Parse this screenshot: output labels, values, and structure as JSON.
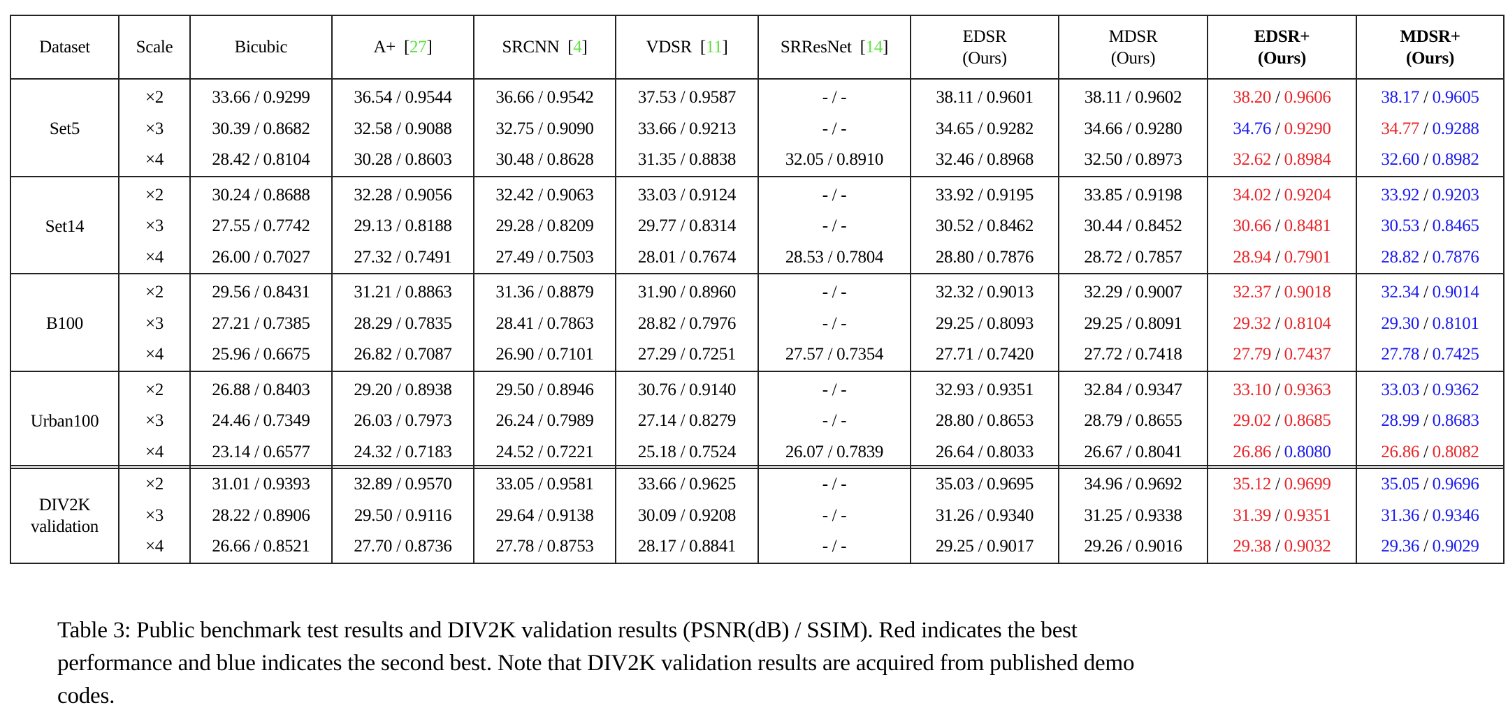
{
  "colors": {
    "citation": "#5fe040",
    "best": "#e8262a",
    "second_best": "#1a1aef",
    "border": "#222222"
  },
  "header": {
    "dataset": "Dataset",
    "scale": "Scale",
    "methods": [
      {
        "name": "Bicubic",
        "cite": "",
        "sub": "",
        "bold": false
      },
      {
        "name": "A+",
        "cite": "27",
        "sub": "",
        "bold": false
      },
      {
        "name": "SRCNN",
        "cite": "4",
        "sub": "",
        "bold": false
      },
      {
        "name": "VDSR",
        "cite": "11",
        "sub": "",
        "bold": false
      },
      {
        "name": "SRResNet",
        "cite": "14",
        "sub": "",
        "bold": false
      },
      {
        "name": "EDSR",
        "cite": "",
        "sub": "(Ours)",
        "bold": false
      },
      {
        "name": "MDSR",
        "cite": "",
        "sub": "(Ours)",
        "bold": false
      },
      {
        "name": "EDSR+",
        "cite": "",
        "sub": "(Ours)",
        "bold": true
      },
      {
        "name": "MDSR+",
        "cite": "",
        "sub": "(Ours)",
        "bold": true
      }
    ]
  },
  "groups": [
    {
      "dataset": "Set5",
      "rows": [
        {
          "scale": "×2",
          "cells": [
            {
              "psnr": "33.66",
              "ssim": "0.9299"
            },
            {
              "psnr": "36.54",
              "ssim": "0.9544"
            },
            {
              "psnr": "36.66",
              "ssim": "0.9542"
            },
            {
              "psnr": "37.53",
              "ssim": "0.9587"
            },
            {
              "psnr": "-",
              "ssim": "-"
            },
            {
              "psnr": "38.11",
              "ssim": "0.9601"
            },
            {
              "psnr": "38.11",
              "ssim": "0.9602"
            },
            {
              "psnr": "38.20",
              "ssim": "0.9606",
              "pc": "red",
              "sc": "red"
            },
            {
              "psnr": "38.17",
              "ssim": "0.9605",
              "pc": "blue",
              "sc": "blue"
            }
          ]
        },
        {
          "scale": "×3",
          "cells": [
            {
              "psnr": "30.39",
              "ssim": "0.8682"
            },
            {
              "psnr": "32.58",
              "ssim": "0.9088"
            },
            {
              "psnr": "32.75",
              "ssim": "0.9090"
            },
            {
              "psnr": "33.66",
              "ssim": "0.9213"
            },
            {
              "psnr": "-",
              "ssim": "-"
            },
            {
              "psnr": "34.65",
              "ssim": "0.9282"
            },
            {
              "psnr": "34.66",
              "ssim": "0.9280"
            },
            {
              "psnr": "34.76",
              "ssim": "0.9290",
              "pc": "blue",
              "sc": "red"
            },
            {
              "psnr": "34.77",
              "ssim": "0.9288",
              "pc": "red",
              "sc": "blue"
            }
          ]
        },
        {
          "scale": "×4",
          "cells": [
            {
              "psnr": "28.42",
              "ssim": "0.8104"
            },
            {
              "psnr": "30.28",
              "ssim": "0.8603"
            },
            {
              "psnr": "30.48",
              "ssim": "0.8628"
            },
            {
              "psnr": "31.35",
              "ssim": "0.8838"
            },
            {
              "psnr": "32.05",
              "ssim": "0.8910"
            },
            {
              "psnr": "32.46",
              "ssim": "0.8968"
            },
            {
              "psnr": "32.50",
              "ssim": "0.8973"
            },
            {
              "psnr": "32.62",
              "ssim": "0.8984",
              "pc": "red",
              "sc": "red"
            },
            {
              "psnr": "32.60",
              "ssim": "0.8982",
              "pc": "blue",
              "sc": "blue"
            }
          ]
        }
      ]
    },
    {
      "dataset": "Set14",
      "rows": [
        {
          "scale": "×2",
          "cells": [
            {
              "psnr": "30.24",
              "ssim": "0.8688"
            },
            {
              "psnr": "32.28",
              "ssim": "0.9056"
            },
            {
              "psnr": "32.42",
              "ssim": "0.9063"
            },
            {
              "psnr": "33.03",
              "ssim": "0.9124"
            },
            {
              "psnr": "-",
              "ssim": "-"
            },
            {
              "psnr": "33.92",
              "ssim": "0.9195"
            },
            {
              "psnr": "33.85",
              "ssim": "0.9198"
            },
            {
              "psnr": "34.02",
              "ssim": "0.9204",
              "pc": "red",
              "sc": "red"
            },
            {
              "psnr": "33.92",
              "ssim": "0.9203",
              "pc": "blue",
              "sc": "blue"
            }
          ]
        },
        {
          "scale": "×3",
          "cells": [
            {
              "psnr": "27.55",
              "ssim": "0.7742"
            },
            {
              "psnr": "29.13",
              "ssim": "0.8188"
            },
            {
              "psnr": "29.28",
              "ssim": "0.8209"
            },
            {
              "psnr": "29.77",
              "ssim": "0.8314"
            },
            {
              "psnr": "-",
              "ssim": "-"
            },
            {
              "psnr": "30.52",
              "ssim": "0.8462"
            },
            {
              "psnr": "30.44",
              "ssim": "0.8452"
            },
            {
              "psnr": "30.66",
              "ssim": "0.8481",
              "pc": "red",
              "sc": "red"
            },
            {
              "psnr": "30.53",
              "ssim": "0.8465",
              "pc": "blue",
              "sc": "blue"
            }
          ]
        },
        {
          "scale": "×4",
          "cells": [
            {
              "psnr": "26.00",
              "ssim": "0.7027"
            },
            {
              "psnr": "27.32",
              "ssim": "0.7491"
            },
            {
              "psnr": "27.49",
              "ssim": "0.7503"
            },
            {
              "psnr": "28.01",
              "ssim": "0.7674"
            },
            {
              "psnr": "28.53",
              "ssim": "0.7804"
            },
            {
              "psnr": "28.80",
              "ssim": "0.7876"
            },
            {
              "psnr": "28.72",
              "ssim": "0.7857"
            },
            {
              "psnr": "28.94",
              "ssim": "0.7901",
              "pc": "red",
              "sc": "red"
            },
            {
              "psnr": "28.82",
              "ssim": "0.7876",
              "pc": "blue",
              "sc": "blue"
            }
          ]
        }
      ]
    },
    {
      "dataset": "B100",
      "rows": [
        {
          "scale": "×2",
          "cells": [
            {
              "psnr": "29.56",
              "ssim": "0.8431"
            },
            {
              "psnr": "31.21",
              "ssim": "0.8863"
            },
            {
              "psnr": "31.36",
              "ssim": "0.8879"
            },
            {
              "psnr": "31.90",
              "ssim": "0.8960"
            },
            {
              "psnr": "-",
              "ssim": "-"
            },
            {
              "psnr": "32.32",
              "ssim": "0.9013"
            },
            {
              "psnr": "32.29",
              "ssim": "0.9007"
            },
            {
              "psnr": "32.37",
              "ssim": "0.9018",
              "pc": "red",
              "sc": "red"
            },
            {
              "psnr": "32.34",
              "ssim": "0.9014",
              "pc": "blue",
              "sc": "blue"
            }
          ]
        },
        {
          "scale": "×3",
          "cells": [
            {
              "psnr": "27.21",
              "ssim": "0.7385"
            },
            {
              "psnr": "28.29",
              "ssim": "0.7835"
            },
            {
              "psnr": "28.41",
              "ssim": "0.7863"
            },
            {
              "psnr": "28.82",
              "ssim": "0.7976"
            },
            {
              "psnr": "-",
              "ssim": "-"
            },
            {
              "psnr": "29.25",
              "ssim": "0.8093"
            },
            {
              "psnr": "29.25",
              "ssim": "0.8091"
            },
            {
              "psnr": "29.32",
              "ssim": "0.8104",
              "pc": "red",
              "sc": "red"
            },
            {
              "psnr": "29.30",
              "ssim": "0.8101",
              "pc": "blue",
              "sc": "blue"
            }
          ]
        },
        {
          "scale": "×4",
          "cells": [
            {
              "psnr": "25.96",
              "ssim": "0.6675"
            },
            {
              "psnr": "26.82",
              "ssim": "0.7087"
            },
            {
              "psnr": "26.90",
              "ssim": "0.7101"
            },
            {
              "psnr": "27.29",
              "ssim": "0.7251"
            },
            {
              "psnr": "27.57",
              "ssim": "0.7354"
            },
            {
              "psnr": "27.71",
              "ssim": "0.7420"
            },
            {
              "psnr": "27.72",
              "ssim": "0.7418"
            },
            {
              "psnr": "27.79",
              "ssim": "0.7437",
              "pc": "red",
              "sc": "red"
            },
            {
              "psnr": "27.78",
              "ssim": "0.7425",
              "pc": "blue",
              "sc": "blue"
            }
          ]
        }
      ]
    },
    {
      "dataset": "Urban100",
      "rows": [
        {
          "scale": "×2",
          "cells": [
            {
              "psnr": "26.88",
              "ssim": "0.8403"
            },
            {
              "psnr": "29.20",
              "ssim": "0.8938"
            },
            {
              "psnr": "29.50",
              "ssim": "0.8946"
            },
            {
              "psnr": "30.76",
              "ssim": "0.9140"
            },
            {
              "psnr": "-",
              "ssim": "-"
            },
            {
              "psnr": "32.93",
              "ssim": "0.9351"
            },
            {
              "psnr": "32.84",
              "ssim": "0.9347"
            },
            {
              "psnr": "33.10",
              "ssim": "0.9363",
              "pc": "red",
              "sc": "red"
            },
            {
              "psnr": "33.03",
              "ssim": "0.9362",
              "pc": "blue",
              "sc": "blue"
            }
          ]
        },
        {
          "scale": "×3",
          "cells": [
            {
              "psnr": "24.46",
              "ssim": "0.7349"
            },
            {
              "psnr": "26.03",
              "ssim": "0.7973"
            },
            {
              "psnr": "26.24",
              "ssim": "0.7989"
            },
            {
              "psnr": "27.14",
              "ssim": "0.8279"
            },
            {
              "psnr": "-",
              "ssim": "-"
            },
            {
              "psnr": "28.80",
              "ssim": "0.8653"
            },
            {
              "psnr": "28.79",
              "ssim": "0.8655"
            },
            {
              "psnr": "29.02",
              "ssim": "0.8685",
              "pc": "red",
              "sc": "red"
            },
            {
              "psnr": "28.99",
              "ssim": "0.8683",
              "pc": "blue",
              "sc": "blue"
            }
          ]
        },
        {
          "scale": "×4",
          "cells": [
            {
              "psnr": "23.14",
              "ssim": "0.6577"
            },
            {
              "psnr": "24.32",
              "ssim": "0.7183"
            },
            {
              "psnr": "24.52",
              "ssim": "0.7221"
            },
            {
              "psnr": "25.18",
              "ssim": "0.7524"
            },
            {
              "psnr": "26.07",
              "ssim": "0.7839"
            },
            {
              "psnr": "26.64",
              "ssim": "0.8033"
            },
            {
              "psnr": "26.67",
              "ssim": "0.8041"
            },
            {
              "psnr": "26.86",
              "ssim": "0.8080",
              "pc": "red",
              "sc": "blue"
            },
            {
              "psnr": "26.86",
              "ssim": "0.8082",
              "pc": "red",
              "sc": "red"
            }
          ]
        }
      ]
    }
  ],
  "div2k": {
    "dataset_line1": "DIV2K",
    "dataset_line2": "validation",
    "rows": [
      {
        "scale": "×2",
        "cells": [
          {
            "psnr": "31.01",
            "ssim": "0.9393"
          },
          {
            "psnr": "32.89",
            "ssim": "0.9570"
          },
          {
            "psnr": "33.05",
            "ssim": "0.9581"
          },
          {
            "psnr": "33.66",
            "ssim": "0.9625"
          },
          {
            "psnr": "-",
            "ssim": "-"
          },
          {
            "psnr": "35.03",
            "ssim": "0.9695"
          },
          {
            "psnr": "34.96",
            "ssim": "0.9692"
          },
          {
            "psnr": "35.12",
            "ssim": "0.9699",
            "pc": "red",
            "sc": "red"
          },
          {
            "psnr": "35.05",
            "ssim": "0.9696",
            "pc": "blue",
            "sc": "blue"
          }
        ]
      },
      {
        "scale": "×3",
        "cells": [
          {
            "psnr": "28.22",
            "ssim": "0.8906"
          },
          {
            "psnr": "29.50",
            "ssim": "0.9116"
          },
          {
            "psnr": "29.64",
            "ssim": "0.9138"
          },
          {
            "psnr": "30.09",
            "ssim": "0.9208"
          },
          {
            "psnr": "-",
            "ssim": "-"
          },
          {
            "psnr": "31.26",
            "ssim": "0.9340"
          },
          {
            "psnr": "31.25",
            "ssim": "0.9338"
          },
          {
            "psnr": "31.39",
            "ssim": "0.9351",
            "pc": "red",
            "sc": "red"
          },
          {
            "psnr": "31.36",
            "ssim": "0.9346",
            "pc": "blue",
            "sc": "blue"
          }
        ]
      },
      {
        "scale": "×4",
        "cells": [
          {
            "psnr": "26.66",
            "ssim": "0.8521"
          },
          {
            "psnr": "27.70",
            "ssim": "0.8736"
          },
          {
            "psnr": "27.78",
            "ssim": "0.8753"
          },
          {
            "psnr": "28.17",
            "ssim": "0.8841"
          },
          {
            "psnr": "-",
            "ssim": "-"
          },
          {
            "psnr": "29.25",
            "ssim": "0.9017"
          },
          {
            "psnr": "29.26",
            "ssim": "0.9016"
          },
          {
            "psnr": "29.38",
            "ssim": "0.9032",
            "pc": "red",
            "sc": "red"
          },
          {
            "psnr": "29.36",
            "ssim": "0.9029",
            "pc": "blue",
            "sc": "blue"
          }
        ]
      }
    ]
  },
  "caption": {
    "line1": "Table 3: Public benchmark test results and DIV2K validation results (PSNR(dB) / SSIM). Red indicates the best",
    "line2": "performance and blue indicates the second best. Note that DIV2K validation results are acquired from published demo",
    "line3": "codes."
  }
}
